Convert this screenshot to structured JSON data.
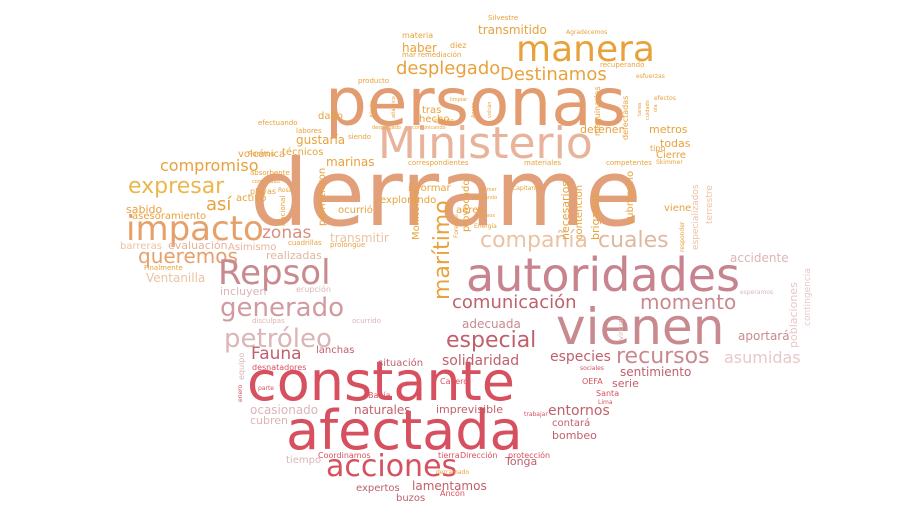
{
  "palette": {
    "orange": "#e8a23c",
    "peach": "#e2a380",
    "lightpeach": "#ebc3a4",
    "pink": "#c88a8f",
    "lightpink": "#dcb5b7",
    "red": "#d6505f",
    "pale": "#f0dcd2"
  },
  "words": [
    {
      "t": "derrame",
      "c": "#e2a07a"
    },
    {
      "t": "personas",
      "c": "#e29c6f"
    },
    {
      "t": "Ministerio",
      "c": "#e8b39a"
    },
    {
      "t": "manera",
      "c": "#e8a23c"
    },
    {
      "t": "desplegado",
      "c": "#e8a23c"
    },
    {
      "t": "Destinamos",
      "c": "#e8a23c"
    },
    {
      "t": "impacto",
      "c": "#e6a06a"
    },
    {
      "t": "expresar",
      "c": "#ebb74c"
    },
    {
      "t": "compromiso",
      "c": "#e8a23c"
    },
    {
      "t": "así",
      "c": "#e8a23c"
    },
    {
      "t": "queremos",
      "c": "#e6a06a"
    },
    {
      "t": "zonas",
      "c": "#d98f7f"
    },
    {
      "t": "compañía",
      "c": "#ebc3a4"
    },
    {
      "t": "cuales",
      "c": "#e0b8a0"
    },
    {
      "t": "Repsol",
      "c": "#c88a8f"
    },
    {
      "t": "autoridades",
      "c": "#c8848e"
    },
    {
      "t": "vienen",
      "c": "#c88a8f"
    },
    {
      "t": "generado",
      "c": "#d29aa0"
    },
    {
      "t": "petróleo",
      "c": "#dcb5b7"
    },
    {
      "t": "comunicación",
      "c": "#c0606c"
    },
    {
      "t": "momento",
      "c": "#c88a8f"
    },
    {
      "t": "especial",
      "c": "#c0606c"
    },
    {
      "t": "recursos",
      "c": "#c88a8f"
    },
    {
      "t": "marítimo",
      "c": "#e8a23c"
    },
    {
      "t": "Fauna",
      "c": "#c0606c"
    },
    {
      "t": "constante",
      "c": "#d6505f"
    },
    {
      "t": "afectada",
      "c": "#d6505f"
    },
    {
      "t": "acciones",
      "c": "#d6505f"
    },
    {
      "t": "solidaridad",
      "c": "#c0606c"
    },
    {
      "t": "especies",
      "c": "#c0606c"
    },
    {
      "t": "asumidas",
      "c": "#e8c8c8"
    },
    {
      "t": "sentimiento",
      "c": "#c0606c"
    },
    {
      "t": "transmitido",
      "c": "#e8a23c"
    },
    {
      "t": "haber",
      "c": "#e8a23c"
    },
    {
      "t": "gustaría",
      "c": "#e8a23c"
    },
    {
      "t": "marinas",
      "c": "#e8a23c"
    },
    {
      "t": "técnicos",
      "c": "#e8a23c"
    },
    {
      "t": "volcánica",
      "c": "#e8a23c"
    },
    {
      "t": "sabido",
      "c": "#e8a23c"
    },
    {
      "t": "asesoramiento",
      "c": "#e8a23c"
    },
    {
      "t": "evaluación",
      "c": "#e8b39a"
    },
    {
      "t": "barreras",
      "c": "#ebc3a4"
    },
    {
      "t": "Asimismo",
      "c": "#e8b39a"
    },
    {
      "t": "realizadas",
      "c": "#e0b8a0"
    },
    {
      "t": "transmitir",
      "c": "#ebc3a4"
    },
    {
      "t": "Ventanilla",
      "c": "#ebc3a4"
    },
    {
      "t": "incluyen",
      "c": "#dcb5b7"
    },
    {
      "t": "adecuada",
      "c": "#c88a8f"
    },
    {
      "t": "lanchas",
      "c": "#c0606c"
    },
    {
      "t": "situación",
      "c": "#c0606c"
    },
    {
      "t": "ocasionado",
      "c": "#dcb5b7"
    },
    {
      "t": "naturales",
      "c": "#c0606c"
    },
    {
      "t": "imprevisible",
      "c": "#c0606c"
    },
    {
      "t": "entornos",
      "c": "#c0606c"
    },
    {
      "t": "serie",
      "c": "#c0606c"
    },
    {
      "t": "cubren",
      "c": "#dcb5b7"
    },
    {
      "t": "contará",
      "c": "#c0606c"
    },
    {
      "t": "bombeo",
      "c": "#c0606c"
    },
    {
      "t": "Tonga",
      "c": "#c0606c"
    },
    {
      "t": "lamentamos",
      "c": "#c0606c"
    },
    {
      "t": "expertos",
      "c": "#c0606c"
    },
    {
      "t": "buzos",
      "c": "#c0606c"
    },
    {
      "t": "tiempo",
      "c": "#dcb5b7"
    },
    {
      "t": "accidente",
      "c": "#dcb5b7"
    },
    {
      "t": "aportará",
      "c": "#c88a8f"
    },
    {
      "t": "detener",
      "c": "#e8a23c"
    },
    {
      "t": "metros",
      "c": "#e8a23c"
    },
    {
      "t": "todas",
      "c": "#e8a23c"
    },
    {
      "t": "Cierre",
      "c": "#e8a23c"
    },
    {
      "t": "informar",
      "c": "#e8a23c"
    },
    {
      "t": "ocurrió",
      "c": "#e8a23c"
    },
    {
      "t": "explorando",
      "c": "#e8a23c"
    },
    {
      "t": "aéreo",
      "c": "#e8a23c"
    },
    {
      "t": "viene",
      "c": "#e8a23c"
    },
    {
      "t": "materia",
      "c": "#e8a23c"
    },
    {
      "t": "diez",
      "c": "#e8a23c"
    },
    {
      "t": "tras",
      "c": "#e8a23c"
    },
    {
      "t": "hecho",
      "c": "#e8a23c"
    },
    {
      "t": "daño",
      "c": "#e8a23c"
    },
    {
      "t": "activó",
      "c": "#e8a23c"
    },
    {
      "t": "tipo",
      "c": "#e8a23c"
    },
    {
      "t": "Coordinamos",
      "c": "#d6505f"
    },
    {
      "t": "tierra",
      "c": "#d6505f"
    },
    {
      "t": "Dirección",
      "c": "#d6505f"
    },
    {
      "t": "protección",
      "c": "#d6505f"
    },
    {
      "t": "Ancón",
      "c": "#d6505f"
    },
    {
      "t": "Bahía",
      "c": "#d6505f"
    },
    {
      "t": "Cavero",
      "c": "#d6505f"
    },
    {
      "t": "OEFA",
      "c": "#d6505f"
    },
    {
      "t": "Santa",
      "c": "#d6505f"
    },
    {
      "t": "Lima",
      "c": "#d6505f"
    },
    {
      "t": "desnatadores",
      "c": "#d6505f"
    },
    {
      "t": "trabajar",
      "c": "#d6505f"
    },
    {
      "t": "sociales",
      "c": "#d6505f"
    },
    {
      "t": "equipo",
      "c": "#dcb5b7"
    },
    {
      "t": "parte",
      "c": "#d6505f"
    },
    {
      "t": "enero",
      "c": "#d6505f"
    },
    {
      "t": "Silvestre",
      "c": "#e8a23c"
    },
    {
      "t": "Agradecemos",
      "c": "#e8a23c"
    },
    {
      "t": "efectos",
      "c": "#e8a23c"
    },
    {
      "t": "mar",
      "c": "#e8a23c"
    },
    {
      "t": "remediación",
      "c": "#e8a23c"
    },
    {
      "t": "recuperando",
      "c": "#e8a23c"
    },
    {
      "t": "esfuerzas",
      "c": "#e8a23c"
    },
    {
      "t": "producto",
      "c": "#e8a23c"
    },
    {
      "t": "efectuando",
      "c": "#e8a23c"
    },
    {
      "t": "Puertos",
      "c": "#e8a23c"
    },
    {
      "t": "labores",
      "c": "#e8a23c"
    },
    {
      "t": "siendo",
      "c": "#e8a23c"
    },
    {
      "t": "playas",
      "c": "#e8a23c"
    },
    {
      "t": "absorbente",
      "c": "#e8a23c"
    },
    {
      "t": "comunidad",
      "c": "#e8a23c"
    },
    {
      "t": "Finalmente",
      "c": "#e8a23c"
    },
    {
      "t": "cuadrillas",
      "c": "#e8a23c"
    },
    {
      "t": "correspondientes",
      "c": "#e8a23c"
    },
    {
      "t": "materiales",
      "c": "#e8a23c"
    },
    {
      "t": "competentes",
      "c": "#e8a23c"
    },
    {
      "t": "erupción",
      "c": "#dcb5b7"
    },
    {
      "t": "prolongue",
      "c": "#e8a23c"
    },
    {
      "t": "Energía",
      "c": "#e8a23c"
    },
    {
      "t": "diversos",
      "c": "#e8a23c"
    },
    {
      "t": "primer",
      "c": "#e8a23c"
    },
    {
      "t": "mitigando",
      "c": "#e8a23c"
    },
    {
      "t": "Capitanía",
      "c": "#e8a23c"
    },
    {
      "t": "Forestal",
      "c": "#e8a23c"
    },
    {
      "t": "Skimmer",
      "c": "#e8a23c"
    },
    {
      "t": "Rosa",
      "c": "#e8a23c"
    },
    {
      "t": "limpiar",
      "c": "#e8a23c"
    },
    {
      "t": "desplegado",
      "c": "#e8a23c"
    },
    {
      "t": "comunicando",
      "c": "#e8a23c"
    },
    {
      "t": "SERFOR",
      "c": "#e8a23c"
    },
    {
      "t": "derramado",
      "c": "#e8a23c"
    },
    {
      "t": "disculpas",
      "c": "#dcb5b7"
    },
    {
      "t": "ocurrido",
      "c": "#dcb5b7"
    },
    {
      "t": "virtual",
      "c": "#dcb5b7"
    },
    {
      "t": "esperamos",
      "c": "#dcb5b7"
    },
    {
      "t": "poblaciones",
      "c": "#e8c8c8"
    },
    {
      "t": "contingencia",
      "c": "#e8c8c8"
    },
    {
      "t": "terrestre",
      "c": "#ebc3a4"
    },
    {
      "t": "especializados",
      "c": "#ebc3a4"
    },
    {
      "t": "responder",
      "c": "#e8a23c"
    },
    {
      "t": "Nacional",
      "c": "#e8a23c"
    },
    {
      "t": "permitieron",
      "c": "#e8a23c"
    },
    {
      "t": "provocado",
      "c": "#e8a23c"
    },
    {
      "t": "Monitoreo",
      "c": "#e8a23c"
    },
    {
      "t": "necesarios",
      "c": "#e8a23c"
    },
    {
      "t": "contención",
      "c": "#e8a23c"
    },
    {
      "t": "brigadas",
      "c": "#e8a23c"
    },
    {
      "t": "submarino",
      "c": "#e8a23c"
    },
    {
      "t": "maquinarias",
      "c": "#e8a23c"
    },
    {
      "t": "defectadas",
      "c": "#e8a23c"
    },
    {
      "t": "Alerta",
      "c": "#e8a23c"
    },
    {
      "t": "Ancón",
      "c": "#e8a23c"
    },
    {
      "t": "atlántico",
      "c": "#e8a23c"
    },
    {
      "t": "volcán",
      "c": "#e8a23c"
    },
    {
      "t": "tarea",
      "c": "#e8a23c"
    },
    {
      "t": "cuidado",
      "c": "#e8a23c"
    },
    {
      "t": "ola",
      "c": "#e8a23c"
    }
  ]
}
